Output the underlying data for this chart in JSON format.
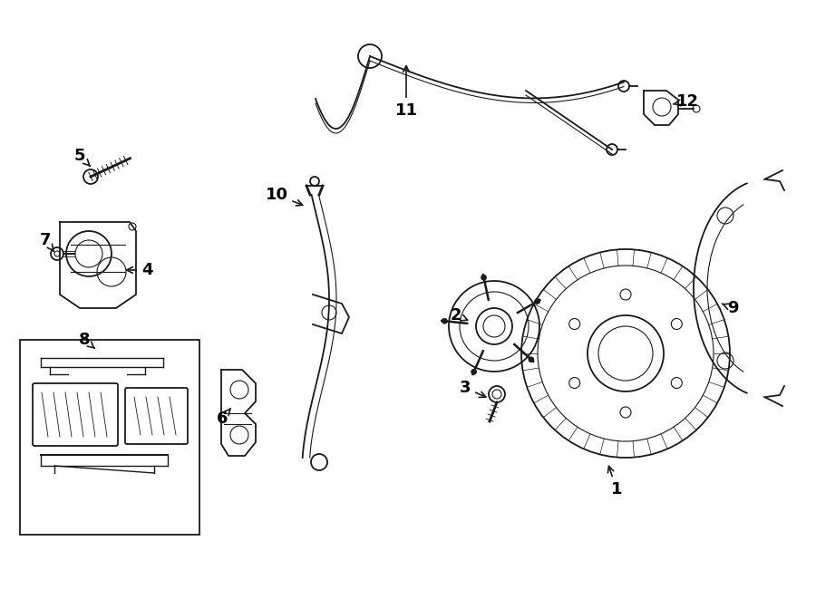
{
  "background_color": "#ffffff",
  "line_color": "#1a1a1a",
  "label_color": "#000000",
  "lw_main": 1.3,
  "lw_thin": 0.8,
  "lw_thick": 2.0,
  "figsize": [
    9.0,
    6.61
  ],
  "dpi": 100
}
